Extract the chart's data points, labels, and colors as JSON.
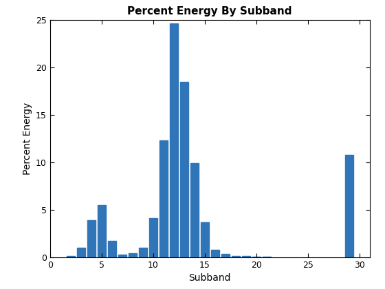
{
  "title": "Percent Energy By Subband",
  "xlabel": "Subband",
  "ylabel": "Percent Energy",
  "bar_positions": [
    2,
    3,
    4,
    5,
    6,
    7,
    8,
    9,
    10,
    11,
    12,
    13,
    14,
    15,
    16,
    17,
    18,
    19,
    20,
    21,
    29
  ],
  "bar_heights": [
    0.15,
    1.0,
    3.9,
    5.5,
    1.7,
    0.3,
    0.4,
    1.0,
    4.1,
    12.3,
    24.7,
    18.5,
    9.9,
    3.7,
    0.8,
    0.35,
    0.15,
    0.1,
    0.05,
    0.05,
    10.8
  ],
  "bar_color": "#3075b8",
  "bar_width": 0.8,
  "ylim": [
    0,
    25
  ],
  "xlim": [
    0,
    31
  ],
  "xticks": [
    0,
    5,
    10,
    15,
    20,
    25,
    30
  ],
  "yticks": [
    0,
    5,
    10,
    15,
    20,
    25
  ],
  "title_fontsize": 11,
  "label_fontsize": 10,
  "tick_fontsize": 9
}
